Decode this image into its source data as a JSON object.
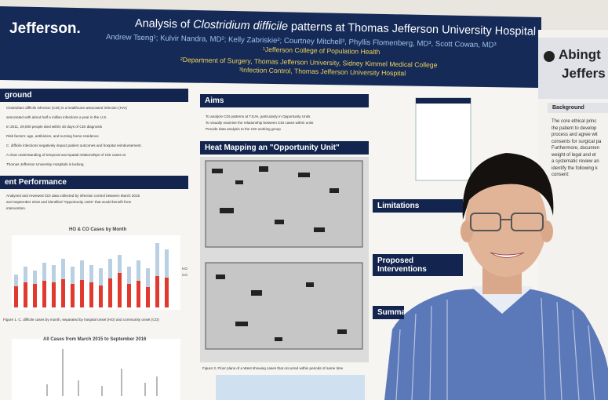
{
  "header": {
    "logo": "Jefferson.",
    "title_start": "Analysis of ",
    "title_italic": "Clostridium difficile",
    "title_end": " patterns at Thomas Jefferson University Hospital",
    "authors": "Andrew Tseng¹; Kulvir Nandra, MD²; Kelly Zabriskie²; Courtney Mitchell³, Phyllis Flomenberg, MD³, Scott Cowan, MD³",
    "affiliations": [
      "¹Jefferson College of Population Health",
      "²Department of Surgery, Thomas Jefferson University, Sidney Kimmel Medical College",
      "³Infection Control, Thomas Jefferson University Hospital"
    ]
  },
  "left_column": {
    "background_heading": "ground",
    "background_text": [
      "Clostridium difficile infection (CDI) is a healthcare-associated infection (HAI)",
      "associated with about half a million infections a year in the U.S.",
      "In 2011, 29,000 people died within 30 days of CDI diagnosis",
      "Risk factors: age, antibiotics, and nursing home residence",
      "C. difficile infections negatively impact patient outcomes and hospital reimbursement.",
      "A clear understanding of temporal and spatial relationships of CDI cases at",
      "Thomas Jefferson University Hospitals is lacking."
    ],
    "performance_heading": "ent Performance",
    "performance_text": [
      "Analyzed and reviewed CDI data collected by infection control between March 2015",
      "and September 2016 and identified \"Opportunity Units\" that would benefit from",
      "intervention."
    ],
    "chart_title": "HO & CO Cases by Month",
    "chart_legend": [
      "HO",
      "CO"
    ],
    "chart_caption": "Figure 1. C. difficile cases by month, separated by hospital onset (HO) and community onset (CO)",
    "chart2_title": "All Cases from March 2015 to September 2016"
  },
  "middle_column": {
    "aims_heading": "Aims",
    "aims": [
      "To analyze CDI patterns at TJUH, particularly in Opportunity Units",
      "To visually examine the relationship between CDI cases within units",
      "Provide data analysis to the CDI working group"
    ],
    "heatmap_heading": "Heat Mapping an \"Opportunity Unit\"",
    "map_caption": "Figure 3. Floor plans of a West showing cases that occurred within periods of same time"
  },
  "right_column": {
    "limitations_heading": "Limitations",
    "interventions_heading": "Proposed Interventions",
    "summary_heading": "Summar"
  },
  "second_poster": {
    "title_lines": [
      "Abingt",
      "Jeffers"
    ],
    "background_heading": "Background",
    "text": [
      "The core ethical princ",
      "the patient to develop",
      "process and agree wit",
      "consents for surgical pa",
      "Furthermore, documen",
      "weight of legal and et",
      "a systematic review an",
      "identify the following k",
      "consent:"
    ]
  }
}
